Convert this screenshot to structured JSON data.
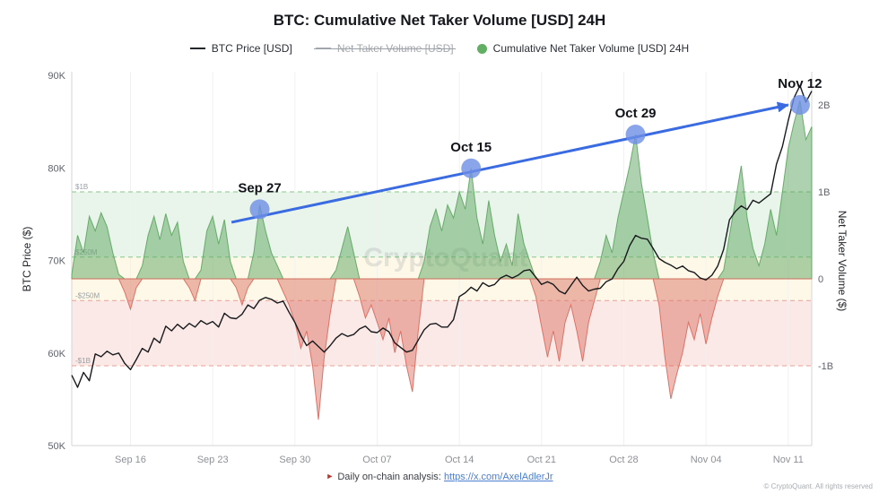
{
  "title": "BTC: Cumulative Net Taker Volume [USD] 24H",
  "legend": {
    "items": [
      {
        "label": "BTC Price [USD]",
        "type": "line",
        "color": "#23262b",
        "disabled": false
      },
      {
        "label": "Net Taker Volume [USD]",
        "type": "line",
        "color": "#a9adb3",
        "disabled": true
      },
      {
        "label": "Cumulative Net Taker Volume [USD] 24H",
        "type": "dot",
        "color": "#61ae64",
        "disabled": false
      }
    ]
  },
  "axes": {
    "left": {
      "title": "BTC Price ($)",
      "ticks": [
        "90K",
        "80K",
        "70K",
        "60K",
        "50K"
      ],
      "tick_values": [
        90000,
        80000,
        70000,
        60000,
        50000
      ]
    },
    "right": {
      "title": "Net Taker Volume ($)",
      "ticks": [
        "2B",
        "1B",
        "0",
        "-1B"
      ],
      "tick_values": [
        2,
        1,
        0,
        -1
      ]
    },
    "x": {
      "ticks": [
        {
          "label": "Sep 16",
          "day": 5
        },
        {
          "label": "Sep 23",
          "day": 12
        },
        {
          "label": "Sep 30",
          "day": 19
        },
        {
          "label": "Oct 07",
          "day": 26
        },
        {
          "label": "Oct 14",
          "day": 33
        },
        {
          "label": "Oct 21",
          "day": 40
        },
        {
          "label": "Oct 28",
          "day": 47
        },
        {
          "label": "Nov 04",
          "day": 54
        },
        {
          "label": "Nov 11",
          "day": 61
        }
      ]
    }
  },
  "thresholds": [
    {
      "label": "$1B",
      "value": 1,
      "color": "#86c98a"
    },
    {
      "label": "$250M",
      "value": 0.25,
      "color": "#86c98a"
    },
    {
      "label": "-$250M",
      "value": -0.25,
      "color": "#e8a197"
    },
    {
      "label": "-$1B",
      "value": -1,
      "color": "#e8a197"
    }
  ],
  "bands": [
    {
      "from": 1,
      "to": 0.25,
      "color": "#e9f4ea"
    },
    {
      "from": 0.25,
      "to": -0.25,
      "color": "#fdf8e7"
    },
    {
      "from": -0.25,
      "to": -1,
      "color": "#fbe9e7"
    }
  ],
  "annotations": {
    "marker_color": "#6e8fe6",
    "arrow": {
      "from": {
        "day": 13.6,
        "value": 0.65
      },
      "to": {
        "day": 61.0,
        "value": 2.0
      },
      "color": "#3b6be0"
    },
    "points": [
      {
        "label": "Sep 27",
        "day": 16,
        "value": 0.8
      },
      {
        "label": "Oct 15",
        "day": 34,
        "value": 1.27
      },
      {
        "label": "Oct 29",
        "day": 48,
        "value": 1.66
      },
      {
        "label": "Nov 12",
        "day": 62,
        "value": 2.0
      }
    ]
  },
  "watermark": "CryptoQuant",
  "footer": {
    "marker": "►",
    "text": "Daily on-chain analysis: ",
    "link": "https://x.com/AxelAdlerJr",
    "copyright": "© CryptoQuant. All rights reserved"
  },
  "chart_data": [
    {
      "type": "line",
      "name": "BTC Price [USD]",
      "ylabel": "BTC Price ($)",
      "ylim": [
        50000,
        90000
      ],
      "color": "#17191c",
      "x_start": 0,
      "x_step": 0.5,
      "x_unit": "days (0 = chart start; weekly ticks Sep 16 … Nov 11)",
      "values": [
        57600,
        56300,
        57900,
        57000,
        59900,
        59600,
        60200,
        59800,
        60000,
        58900,
        58200,
        59300,
        60500,
        60100,
        61600,
        61100,
        62900,
        62400,
        63100,
        62600,
        63200,
        62800,
        63500,
        63100,
        63400,
        62800,
        64300,
        63800,
        63700,
        64200,
        65200,
        64800,
        65700,
        66000,
        65800,
        65400,
        65600,
        64400,
        63300,
        61900,
        60800,
        61300,
        60700,
        60100,
        60800,
        61600,
        62100,
        61800,
        62000,
        62600,
        62900,
        62300,
        62200,
        62700,
        62300,
        61100,
        60600,
        60100,
        60300,
        61400,
        62500,
        63100,
        63200,
        62800,
        62800,
        63600,
        66100,
        66500,
        67100,
        66700,
        67600,
        67200,
        67400,
        68100,
        68400,
        68100,
        68400,
        68900,
        69000,
        68200,
        67400,
        67700,
        67400,
        66700,
        66400,
        67300,
        68200,
        67300,
        66700,
        66900,
        67000,
        67700,
        68000,
        69100,
        69900,
        71600,
        72700,
        72400,
        72300,
        71300,
        70200,
        69800,
        69500,
        69100,
        69400,
        68900,
        68700,
        68100,
        67900,
        68400,
        69400,
        71200,
        74400,
        75300,
        75900,
        75500,
        76500,
        76200,
        76700,
        77200,
        80400,
        82300,
        85100,
        87600,
        88900,
        87100,
        88300
      ]
    },
    {
      "type": "area",
      "name": "Cumulative Net Taker Volume [USD] 24H",
      "ylabel": "Net Taker Volume ($)",
      "unit": "billions USD",
      "ylim": [
        -1.8,
        2.3
      ],
      "positive_color": "#5da560",
      "negative_color": "#d9685c",
      "x_start": 0,
      "x_step": 0.5,
      "values": [
        0.05,
        0.5,
        0.3,
        0.72,
        0.55,
        0.76,
        0.6,
        0.3,
        0.05,
        -0.15,
        -0.35,
        -0.1,
        0.15,
        0.5,
        0.72,
        0.45,
        0.75,
        0.5,
        0.65,
        0.2,
        -0.1,
        -0.25,
        0.1,
        0.55,
        0.72,
        0.4,
        0.68,
        0.2,
        -0.1,
        -0.3,
        -0.1,
        0.3,
        0.85,
        0.55,
        0.3,
        0.15,
        -0.15,
        -0.3,
        -0.5,
        -0.8,
        -0.6,
        -1.0,
        -1.62,
        -0.9,
        -0.4,
        0.1,
        0.35,
        0.6,
        0.3,
        -0.2,
        -0.45,
        -0.3,
        -0.5,
        -0.7,
        -0.45,
        -0.85,
        -0.6,
        -1.0,
        -1.3,
        -0.6,
        0.2,
        0.6,
        0.8,
        0.55,
        0.85,
        0.7,
        1.0,
        0.8,
        1.27,
        0.7,
        0.4,
        0.9,
        0.5,
        0.2,
        0.4,
        0.15,
        0.75,
        0.4,
        0.2,
        -0.2,
        -0.55,
        -0.9,
        -0.6,
        -0.95,
        -0.5,
        -0.3,
        -0.6,
        -0.95,
        -0.5,
        -0.25,
        0.2,
        0.5,
        0.3,
        0.7,
        1.0,
        1.3,
        1.66,
        1.1,
        0.7,
        0.3,
        -0.3,
        -0.9,
        -1.38,
        -1.1,
        -0.85,
        -0.5,
        -0.7,
        -0.4,
        -0.75,
        -0.45,
        -0.2,
        0.1,
        0.5,
        0.9,
        1.3,
        0.7,
        0.35,
        0.15,
        0.4,
        0.8,
        0.5,
        1.0,
        1.5,
        1.8,
        2.05,
        1.6,
        1.75
      ]
    }
  ]
}
